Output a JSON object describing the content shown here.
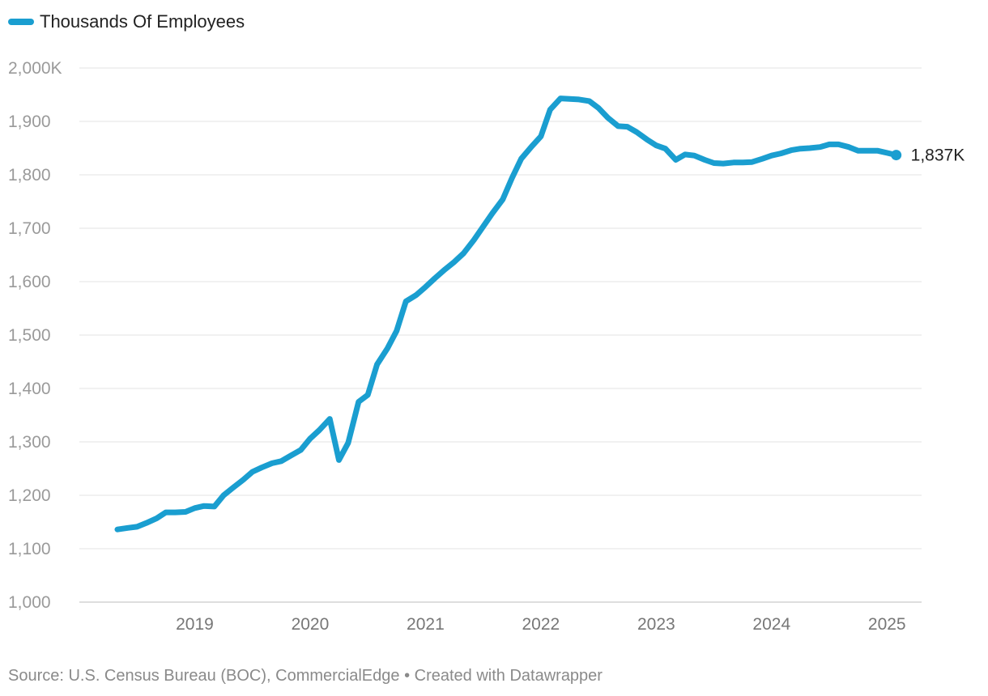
{
  "legend": {
    "label": "Thousands Of Employees",
    "color": "#1a9ed0"
  },
  "source_text": "Source: U.S. Census Bureau (BOC), CommercialEdge • Created with Datawrapper",
  "chart_data": {
    "type": "line",
    "title": "",
    "xlabel": "",
    "ylabel": "",
    "ylim": [
      1000,
      2000
    ],
    "xlim": [
      2018.0,
      2025.3
    ],
    "grid": true,
    "y_ticks": [
      {
        "value": 1000,
        "label": "1,000"
      },
      {
        "value": 1100,
        "label": "1,100"
      },
      {
        "value": 1200,
        "label": "1,200"
      },
      {
        "value": 1300,
        "label": "1,300"
      },
      {
        "value": 1400,
        "label": "1,400"
      },
      {
        "value": 1500,
        "label": "1,500"
      },
      {
        "value": 1600,
        "label": "1,600"
      },
      {
        "value": 1700,
        "label": "1,700"
      },
      {
        "value": 1800,
        "label": "1,800"
      },
      {
        "value": 1900,
        "label": "1,900"
      },
      {
        "value": 2000,
        "label": "2,000K"
      }
    ],
    "x_ticks": [
      {
        "value": 2019,
        "label": "2019"
      },
      {
        "value": 2020,
        "label": "2020"
      },
      {
        "value": 2021,
        "label": "2021"
      },
      {
        "value": 2022,
        "label": "2022"
      },
      {
        "value": 2023,
        "label": "2023"
      },
      {
        "value": 2024,
        "label": "2024"
      },
      {
        "value": 2025,
        "label": "2025"
      }
    ],
    "end_label": "1,837K",
    "series": [
      {
        "name": "Thousands Of Employees",
        "color": "#1a9ed0",
        "x": [
          2018.33,
          2018.42,
          2018.5,
          2018.58,
          2018.67,
          2018.75,
          2018.83,
          2018.92,
          2019.0,
          2019.08,
          2019.17,
          2019.25,
          2019.33,
          2019.42,
          2019.5,
          2019.58,
          2019.67,
          2019.75,
          2019.83,
          2019.92,
          2020.0,
          2020.08,
          2020.17,
          2020.25,
          2020.33,
          2020.42,
          2020.5,
          2020.58,
          2020.67,
          2020.75,
          2020.83,
          2020.92,
          2021.0,
          2021.08,
          2021.17,
          2021.25,
          2021.33,
          2021.42,
          2021.5,
          2021.58,
          2021.67,
          2021.75,
          2021.83,
          2021.92,
          2022.0,
          2022.08,
          2022.17,
          2022.25,
          2022.33,
          2022.42,
          2022.5,
          2022.58,
          2022.67,
          2022.75,
          2022.83,
          2022.92,
          2023.0,
          2023.08,
          2023.17,
          2023.25,
          2023.33,
          2023.42,
          2023.5,
          2023.58,
          2023.67,
          2023.75,
          2023.83,
          2023.92,
          2024.0,
          2024.08,
          2024.17,
          2024.25,
          2024.33,
          2024.42,
          2024.5,
          2024.58,
          2024.67,
          2024.75,
          2024.83,
          2024.92,
          2025.0,
          2025.08
        ],
        "values": [
          1136,
          1139,
          1141,
          1148,
          1157,
          1168,
          1168,
          1169,
          1176,
          1180,
          1179,
          1200,
          1214,
          1229,
          1244,
          1252,
          1260,
          1264,
          1274,
          1285,
          1306,
          1322,
          1343,
          1266,
          1298,
          1375,
          1388,
          1445,
          1475,
          1508,
          1563,
          1575,
          1590,
          1606,
          1623,
          1637,
          1653,
          1678,
          1703,
          1728,
          1754,
          1794,
          1830,
          1853,
          1872,
          1922,
          1943,
          1942,
          1941,
          1938,
          1925,
          1907,
          1891,
          1890,
          1880,
          1866,
          1855,
          1849,
          1828,
          1838,
          1836,
          1828,
          1822,
          1821,
          1823,
          1823,
          1824,
          1830,
          1836,
          1840,
          1846,
          1849,
          1850,
          1852,
          1857,
          1857,
          1852,
          1845,
          1845,
          1845,
          1841,
          1837
        ]
      }
    ]
  }
}
